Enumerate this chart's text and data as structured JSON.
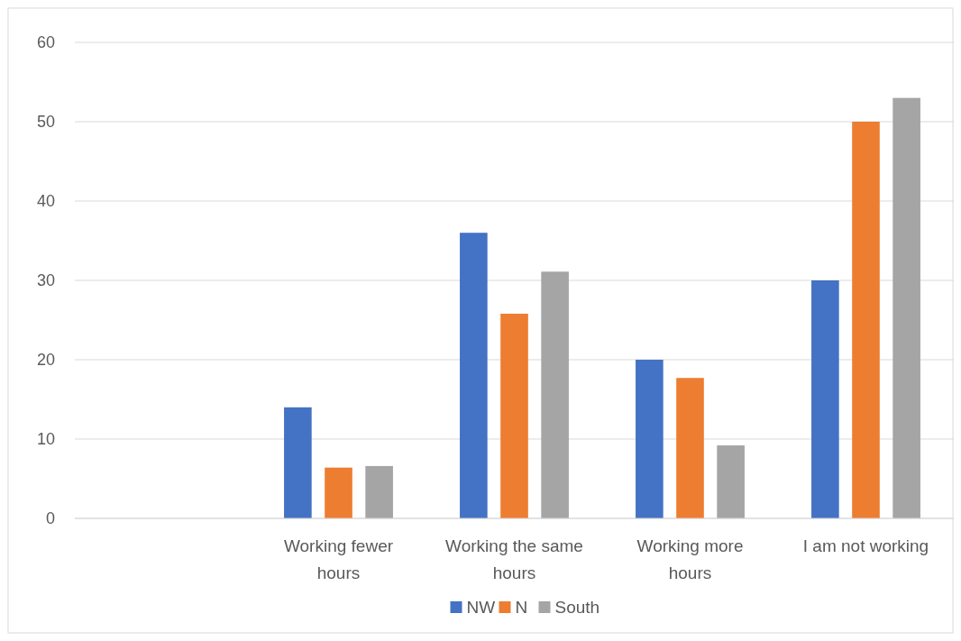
{
  "chart_data": {
    "type": "bar",
    "categories": [
      null,
      "Working fewer hours",
      "Working the same hours",
      "Working more hours",
      "I am not working"
    ],
    "series": [
      {
        "name": "NW",
        "color": "#4472c4",
        "values": [
          null,
          14,
          36,
          20,
          30
        ]
      },
      {
        "name": "N",
        "color": "#ed7d31",
        "values": [
          null,
          6.4,
          25.8,
          17.7,
          50
        ]
      },
      {
        "name": "South",
        "color": "#a5a5a5",
        "values": [
          null,
          6.6,
          31.1,
          9.2,
          53
        ]
      }
    ],
    "ylim": [
      0,
      60
    ],
    "yticks": [
      0,
      10,
      20,
      30,
      40,
      50,
      60
    ],
    "grid": "y",
    "legend": "bottom"
  }
}
